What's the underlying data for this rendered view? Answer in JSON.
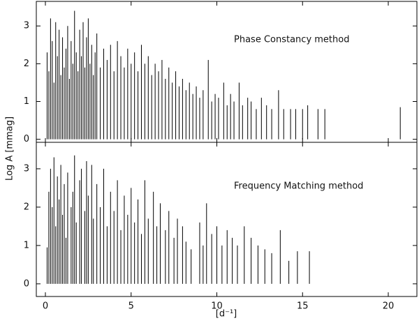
{
  "chart_data": [
    {
      "type": "stem",
      "annotation": "Phase Constancy method",
      "ylabel": "Log A [mmag]",
      "xlim": [
        -0.53,
        21.67
      ],
      "ylim": [
        -0.08,
        3.65
      ],
      "yticks": [
        0,
        1,
        2,
        3
      ],
      "color": "#000000",
      "x": [
        0.1,
        0.2,
        0.3,
        0.4,
        0.5,
        0.6,
        0.7,
        0.8,
        0.9,
        1.0,
        1.1,
        1.2,
        1.3,
        1.4,
        1.5,
        1.6,
        1.7,
        1.8,
        1.9,
        2.0,
        2.1,
        2.2,
        2.3,
        2.4,
        2.5,
        2.6,
        2.7,
        2.8,
        2.9,
        3.0,
        3.2,
        3.4,
        3.6,
        3.8,
        4.0,
        4.2,
        4.4,
        4.6,
        4.8,
        5.0,
        5.2,
        5.4,
        5.6,
        5.8,
        6.0,
        6.2,
        6.4,
        6.6,
        6.8,
        7.0,
        7.2,
        7.4,
        7.6,
        7.8,
        8.0,
        8.2,
        8.4,
        8.6,
        8.8,
        9.0,
        9.2,
        9.5,
        9.7,
        9.9,
        10.1,
        10.4,
        10.6,
        10.8,
        11.0,
        11.3,
        11.5,
        11.8,
        12.0,
        12.3,
        12.6,
        12.9,
        13.2,
        13.6,
        13.9,
        14.3,
        14.6,
        15.0,
        15.3,
        15.9,
        16.3,
        20.7
      ],
      "values": [
        2.3,
        1.8,
        3.2,
        2.6,
        1.5,
        3.1,
        2.2,
        2.9,
        1.7,
        2.7,
        1.9,
        2.4,
        3.0,
        1.6,
        2.6,
        2.0,
        3.4,
        2.3,
        1.8,
        2.9,
        2.2,
        3.1,
        1.9,
        2.7,
        3.2,
        2.0,
        2.5,
        1.7,
        2.3,
        2.8,
        1.9,
        2.4,
        2.1,
        2.5,
        1.8,
        2.6,
        2.2,
        1.9,
        2.4,
        2.0,
        2.3,
        1.8,
        2.5,
        2.0,
        2.2,
        1.7,
        2.0,
        1.8,
        2.1,
        1.6,
        1.9,
        1.5,
        1.8,
        1.4,
        1.6,
        1.3,
        1.5,
        1.2,
        1.4,
        1.1,
        1.3,
        2.1,
        1.0,
        1.2,
        1.1,
        1.5,
        0.9,
        1.2,
        1.0,
        1.5,
        0.9,
        1.1,
        1.0,
        0.8,
        1.1,
        0.9,
        0.8,
        1.3,
        0.8,
        0.8,
        0.8,
        0.8,
        0.9,
        0.8,
        0.8,
        0.85
      ]
    },
    {
      "type": "stem",
      "annotation": "Frequency Matching method",
      "xlabel": "[d⁻¹]",
      "xlim": [
        -0.53,
        21.67
      ],
      "ylim": [
        -0.33,
        3.69
      ],
      "xticks": [
        0,
        5,
        10,
        15,
        20
      ],
      "yticks": [
        0,
        1,
        2,
        3
      ],
      "color": "#000000",
      "x": [
        0.1,
        0.2,
        0.3,
        0.4,
        0.5,
        0.6,
        0.7,
        0.8,
        0.9,
        1.0,
        1.1,
        1.2,
        1.3,
        1.5,
        1.6,
        1.7,
        1.8,
        2.0,
        2.1,
        2.3,
        2.4,
        2.5,
        2.7,
        2.8,
        3.0,
        3.2,
        3.4,
        3.6,
        3.8,
        4.0,
        4.2,
        4.4,
        4.6,
        4.8,
        5.0,
        5.2,
        5.4,
        5.6,
        5.8,
        6.0,
        6.3,
        6.5,
        6.7,
        7.0,
        7.2,
        7.5,
        7.7,
        8.0,
        8.2,
        8.5,
        9.0,
        9.2,
        9.4,
        9.7,
        10.0,
        10.3,
        10.6,
        10.9,
        11.2,
        11.6,
        12.0,
        12.4,
        12.8,
        13.2,
        13.7,
        14.2,
        14.7,
        15.4
      ],
      "values": [
        0.95,
        2.4,
        3.0,
        2.0,
        3.3,
        1.5,
        2.8,
        2.2,
        3.1,
        1.8,
        2.6,
        1.2,
        2.9,
        2.0,
        2.4,
        3.35,
        1.6,
        2.7,
        3.0,
        1.9,
        3.2,
        2.3,
        3.1,
        1.7,
        2.6,
        2.0,
        3.0,
        1.5,
        2.4,
        1.9,
        2.7,
        1.4,
        2.3,
        1.8,
        2.5,
        1.6,
        2.2,
        1.3,
        2.7,
        1.7,
        2.4,
        1.5,
        2.1,
        1.4,
        1.9,
        1.2,
        1.7,
        1.5,
        1.1,
        0.9,
        1.6,
        1.0,
        2.1,
        1.3,
        1.5,
        1.0,
        1.4,
        1.2,
        1.0,
        1.5,
        1.2,
        1.0,
        0.9,
        0.8,
        1.4,
        0.6,
        0.85,
        0.85
      ]
    }
  ]
}
